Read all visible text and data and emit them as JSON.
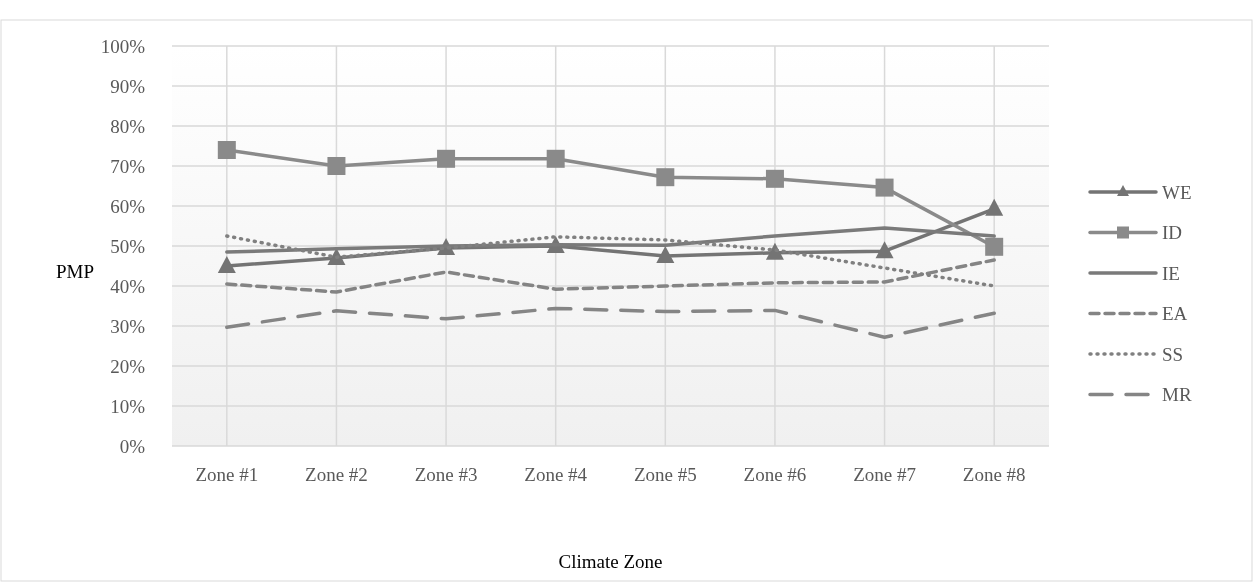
{
  "chart_data": {
    "type": "line",
    "xlabel": "Climate Zone",
    "ylabel": "PMP",
    "categories": [
      "Zone #1",
      "Zone #2",
      "Zone #3",
      "Zone #4",
      "Zone #5",
      "Zone #6",
      "Zone #7",
      "Zone #8"
    ],
    "series": [
      {
        "name": "WE",
        "color": "#747474",
        "marker": "triangle",
        "line_style": "solid",
        "values": [
          0.45,
          0.47,
          0.495,
          0.5,
          0.475,
          0.483,
          0.487,
          0.593
        ]
      },
      {
        "name": "ID",
        "color": "#8a8a8a",
        "marker": "square",
        "line_style": "solid",
        "values": [
          0.74,
          0.7,
          0.718,
          0.718,
          0.672,
          0.668,
          0.646,
          0.498
        ]
      },
      {
        "name": "IE",
        "color": "#7a7a7a",
        "marker": "none",
        "line_style": "solid",
        "values": [
          0.485,
          0.493,
          0.5,
          0.503,
          0.502,
          0.525,
          0.545,
          0.525
        ]
      },
      {
        "name": "EA",
        "color": "#848484",
        "marker": "none",
        "line_style": "dashed",
        "values": [
          0.405,
          0.385,
          0.435,
          0.392,
          0.4,
          0.408,
          0.41,
          0.465
        ]
      },
      {
        "name": "SS",
        "color": "#808080",
        "marker": "none",
        "line_style": "dotted",
        "values": [
          0.525,
          0.472,
          0.495,
          0.523,
          0.515,
          0.49,
          0.445,
          0.4
        ]
      },
      {
        "name": "MR",
        "color": "#858585",
        "marker": "none",
        "line_style": "longdash",
        "values": [
          0.297,
          0.338,
          0.318,
          0.344,
          0.336,
          0.339,
          0.272,
          0.332
        ]
      }
    ],
    "ylim": [
      0,
      1
    ],
    "yticks": [
      {
        "value": 0,
        "label": "0%"
      },
      {
        "value": 0.1,
        "label": "10%"
      },
      {
        "value": 0.2,
        "label": "20%"
      },
      {
        "value": 0.3,
        "label": "30%"
      },
      {
        "value": 0.4,
        "label": "40%"
      },
      {
        "value": 0.5,
        "label": "50%"
      },
      {
        "value": 0.6,
        "label": "60%"
      },
      {
        "value": 0.7,
        "label": "70%"
      },
      {
        "value": 0.8,
        "label": "80%"
      },
      {
        "value": 0.9,
        "label": "90%"
      },
      {
        "value": 1,
        "label": "100%"
      }
    ],
    "grid": true,
    "legend": "right"
  }
}
